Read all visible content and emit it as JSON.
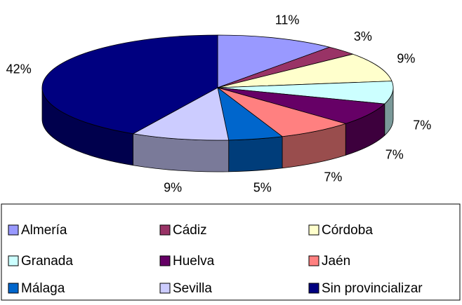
{
  "chart_data": {
    "type": "pie",
    "categories": [
      "Almería",
      "Cádiz",
      "Córdoba",
      "Granada",
      "Huelva",
      "Jaén",
      "Málaga",
      "Sevilla",
      "Sin provincializar"
    ],
    "values": [
      11,
      3,
      9,
      7,
      7,
      7,
      5,
      9,
      42
    ],
    "value_labels": [
      "11%",
      "3%",
      "9%",
      "7%",
      "7%",
      "7%",
      "5%",
      "9%",
      "42%"
    ],
    "colors": [
      "#9999ff",
      "#993366",
      "#ffffcc",
      "#ccffff",
      "#660066",
      "#ff8080",
      "#0066cc",
      "#ccccff",
      "#000080"
    ],
    "legend": "bottom"
  }
}
